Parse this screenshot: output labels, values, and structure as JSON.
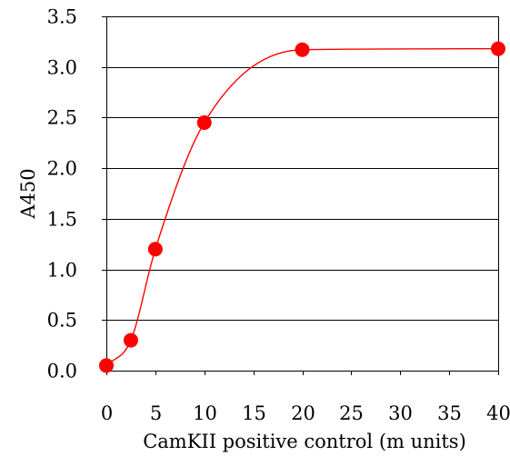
{
  "chart_data": {
    "type": "line",
    "title": "",
    "xlabel": "CamKII positive control (m units)",
    "ylabel": "A450",
    "xlim": [
      0,
      40
    ],
    "ylim": [
      0,
      3.5
    ],
    "x_ticks": [
      0,
      5,
      10,
      15,
      20,
      25,
      30,
      35,
      40
    ],
    "y_ticks": [
      0.0,
      0.5,
      1.0,
      1.5,
      2.0,
      2.5,
      3.0,
      3.5
    ],
    "x_tick_labels": [
      "0",
      "5",
      "10",
      "15",
      "20",
      "25",
      "30",
      "35",
      "40"
    ],
    "y_tick_labels": [
      "0.0",
      "0.5",
      "1.0",
      "1.5",
      "2.0",
      "2.5",
      "3.0",
      "3.5"
    ],
    "grid": "horizontal",
    "series": [
      {
        "color": "#ff0000",
        "marker": "circle",
        "points": [
          {
            "x": 0.0,
            "y": 0.05
          },
          {
            "x": 2.5,
            "y": 0.3
          },
          {
            "x": 5.0,
            "y": 1.2
          },
          {
            "x": 10.0,
            "y": 2.45
          },
          {
            "x": 20.0,
            "y": 3.17
          },
          {
            "x": 40.0,
            "y": 3.18
          }
        ]
      }
    ]
  }
}
